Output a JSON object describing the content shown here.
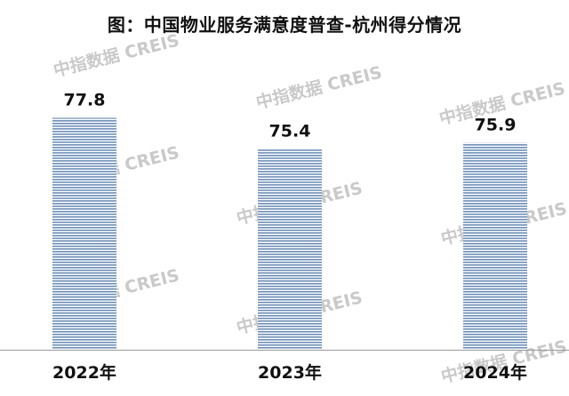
{
  "title": "图：中国物业服务满意度普查-杭州得分情况",
  "watermark": "中指数据 CREIS",
  "colors": {
    "bar_stripe": "#6e8fb8",
    "bar_gap": "#ffffff",
    "text": "#111111",
    "axis": "#9a9a9a",
    "watermark": "#c9c9c9"
  },
  "chart_data": {
    "type": "bar",
    "categories": [
      "2022年",
      "2023年",
      "2024年"
    ],
    "values": [
      77.8,
      75.4,
      75.9
    ],
    "value_labels": [
      "77.8",
      "75.4",
      "75.9"
    ],
    "title": "图：中国物业服务满意度普查-杭州得分情况",
    "xlabel": "",
    "ylabel": "",
    "ylim": [
      60.1,
      80
    ],
    "grid": false,
    "legend": "none"
  }
}
